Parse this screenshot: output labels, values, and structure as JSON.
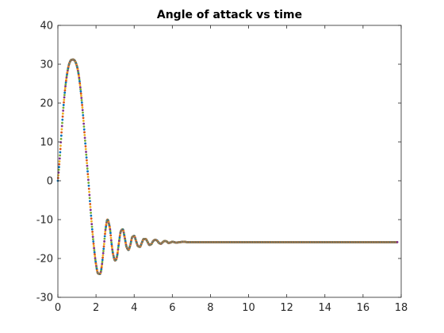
{
  "chart_data": {
    "type": "line",
    "title": "Angle of attack vs time",
    "xlabel": "",
    "ylabel": "",
    "xlim": [
      0,
      18
    ],
    "ylim": [
      -30,
      40
    ],
    "x_ticks": [
      0,
      2,
      4,
      6,
      8,
      10,
      12,
      14,
      16,
      18
    ],
    "y_ticks": [
      -30,
      -20,
      -10,
      0,
      10,
      20,
      30,
      40
    ],
    "grid": false,
    "legend": "none",
    "series": [
      {
        "color_cycle": [
          "#0072BD",
          "#D95319",
          "#EDB120",
          "#7E2F8E",
          "#77AC30"
        ],
        "x": [
          0,
          0.1,
          0.2,
          0.3,
          0.4,
          0.5,
          0.6,
          0.7,
          0.8,
          0.85,
          0.9,
          1.0,
          1.1,
          1.2,
          1.3,
          1.4,
          1.5,
          1.6,
          1.7,
          1.8,
          1.9,
          2.0,
          2.1,
          2.2,
          2.25,
          2.3,
          2.4,
          2.5,
          2.6,
          2.7,
          2.75,
          2.8,
          2.9,
          3.0,
          3.05,
          3.1,
          3.2,
          3.3,
          3.4,
          3.5,
          3.6,
          3.65,
          3.7,
          3.8,
          3.9,
          4.0,
          4.1,
          4.2,
          4.3,
          4.4,
          4.5,
          4.6,
          4.7,
          4.8,
          4.9,
          5.0,
          5.1,
          5.2,
          5.3,
          5.4,
          5.5,
          5.6,
          5.7,
          5.8,
          5.9,
          6.0,
          6.2,
          6.4,
          6.6,
          6.8,
          7.0,
          7.5,
          8.0,
          9.0,
          10.0,
          11.0,
          12.0,
          13.0,
          14.0,
          15.0,
          16.0,
          17.0,
          17.8
        ],
        "y": [
          0,
          6,
          13,
          19.5,
          24.5,
          28,
          30.2,
          31.1,
          31.2,
          31.1,
          30.8,
          29.5,
          27,
          23,
          18,
          12,
          6,
          0,
          -6.5,
          -12.5,
          -17.5,
          -21.5,
          -23.8,
          -24,
          -23.5,
          -22,
          -17.5,
          -12.5,
          -10,
          -11.5,
          -13,
          -15.5,
          -19,
          -20.5,
          -20.3,
          -19.5,
          -16,
          -13,
          -12.5,
          -14.5,
          -17,
          -17.5,
          -17.8,
          -16.5,
          -14.5,
          -14.2,
          -15.5,
          -16.8,
          -17,
          -16,
          -15,
          -15,
          -15.7,
          -16.5,
          -16.3,
          -15.5,
          -15.2,
          -15.4,
          -16,
          -16.2,
          -15.8,
          -15.5,
          -15.6,
          -16,
          -15.9,
          -15.7,
          -15.9,
          -15.8,
          -15.7,
          -15.8,
          -15.8,
          -15.8,
          -15.8,
          -15.8,
          -15.8,
          -15.8,
          -15.8,
          -15.8,
          -15.8,
          -15.8,
          -15.8,
          -15.8,
          -15.8
        ]
      }
    ]
  }
}
